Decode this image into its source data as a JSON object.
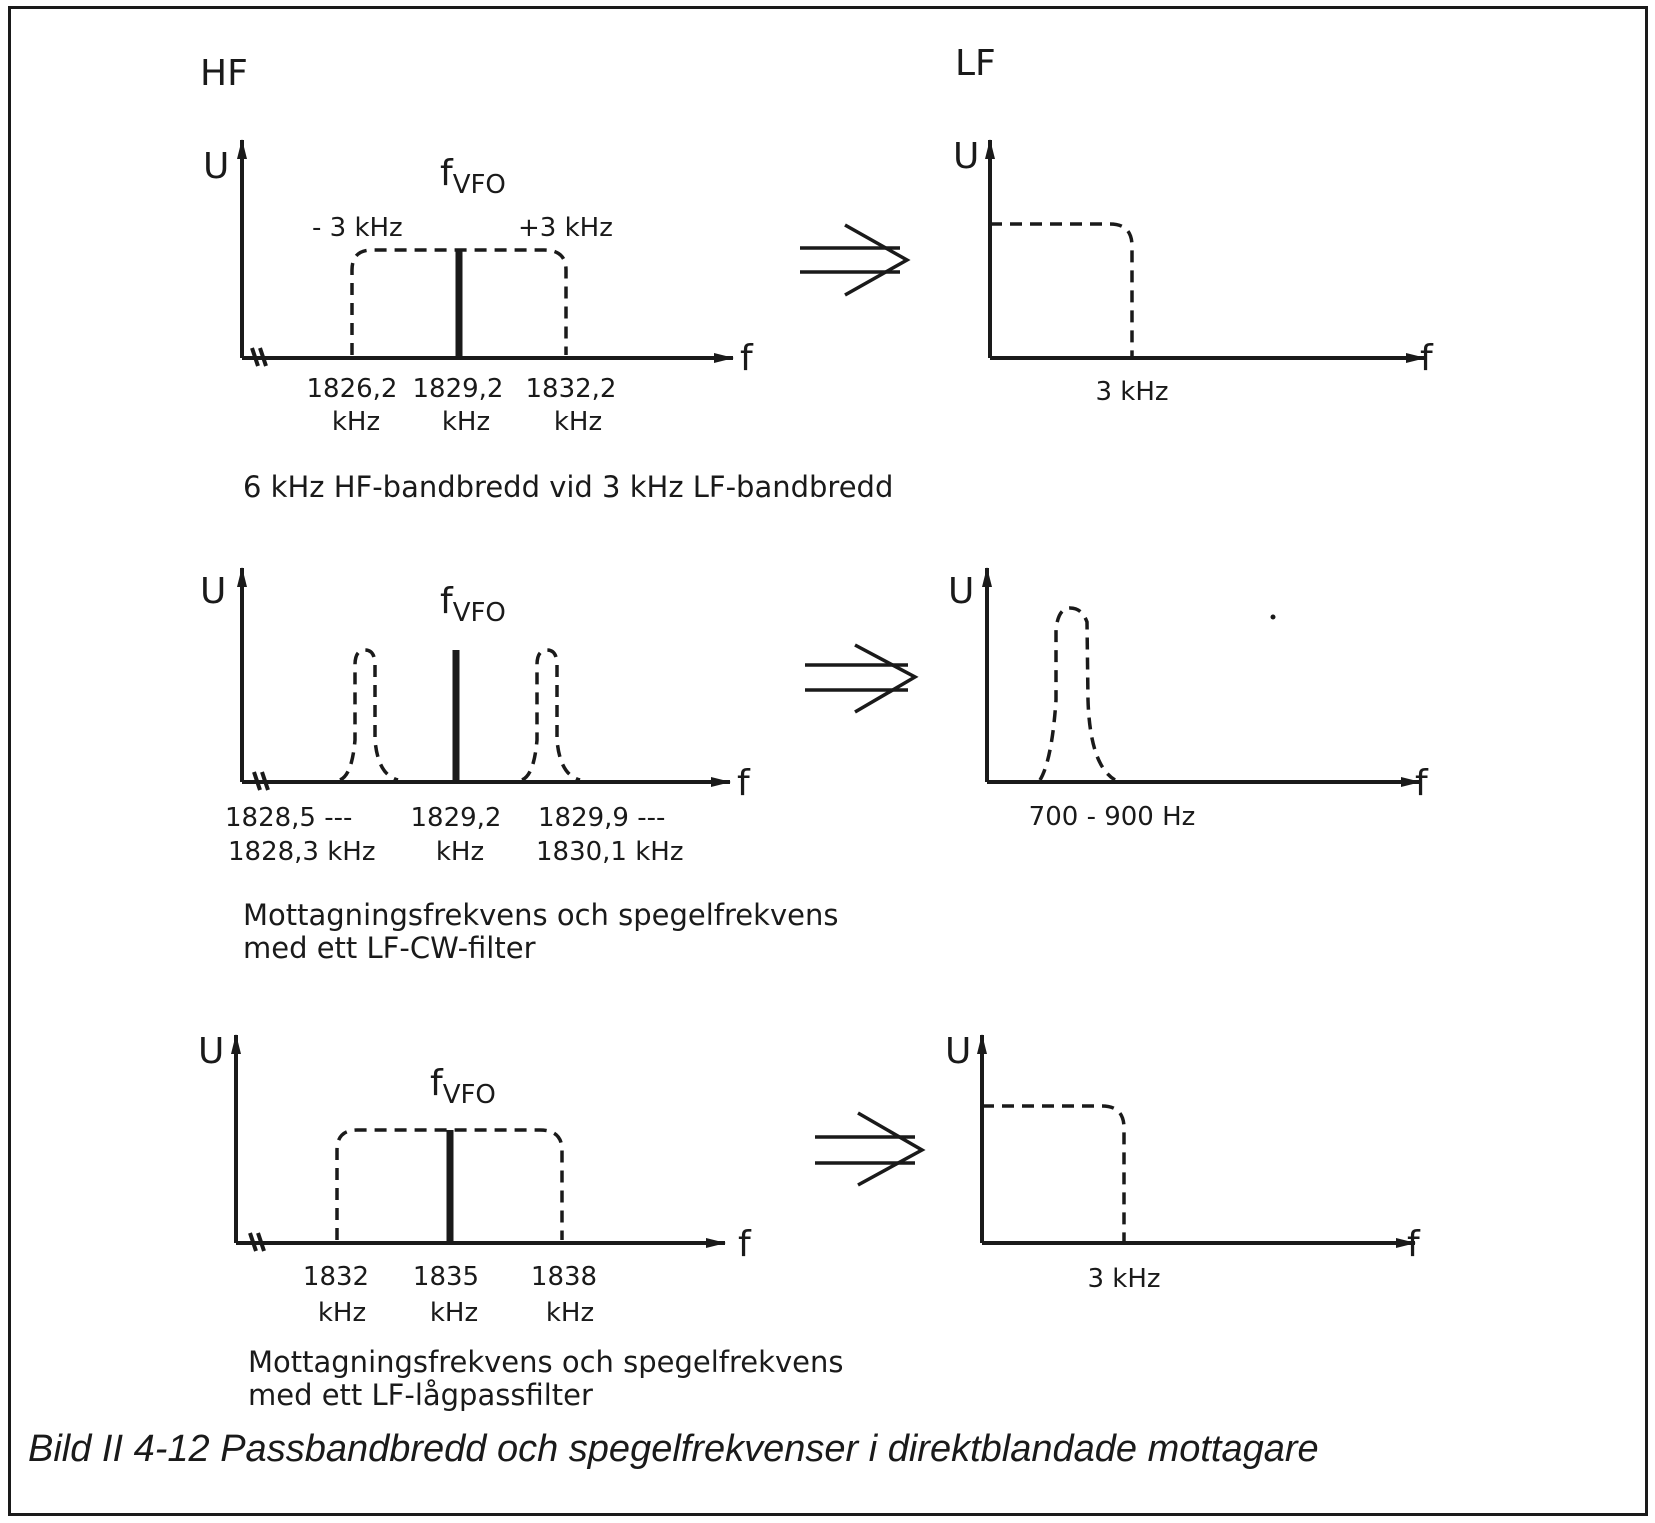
{
  "figure": {
    "col_hf": "HF",
    "col_lf": "LF",
    "u_label": "U",
    "f_label": "f",
    "fvfo_main": "f",
    "fvfo_sub": "VFO",
    "title": "Bild II 4-12 Passbandbredd och spegelfrekvenser i direktblandade mottagare"
  },
  "panel1": {
    "minus": "- 3 kHz",
    "plus": "+3 kHz",
    "t1a": "1826,2",
    "t1b": "kHz",
    "t2a": "1829,2",
    "t2b": "kHz",
    "t3a": "1832,2",
    "t3b": "kHz",
    "lf_tick": "3 kHz",
    "caption": "6 kHz HF-bandbredd vid 3 kHz LF-bandbredd"
  },
  "panel2": {
    "t1a": "1828,5 ---",
    "t1b": "1828,3 kHz",
    "t2a": "1829,2",
    "t2b": "kHz",
    "t3a": "1829,9 ---",
    "t3b": "1830,1 kHz",
    "lf_tick": "700 - 900 Hz",
    "caption1": "Mottagningsfrekvens och spegelfrekvens",
    "caption2": "med ett LF-CW-filter"
  },
  "panel3": {
    "t1a": "1832",
    "t1b": "kHz",
    "t2a": "1835",
    "t2b": "kHz",
    "t3a": "1838",
    "t3b": "kHz",
    "lf_tick": "3 kHz",
    "caption1": "Mottagningsfrekvens och spegelfrekvens",
    "caption2": "med ett LF-lågpassfilter"
  }
}
